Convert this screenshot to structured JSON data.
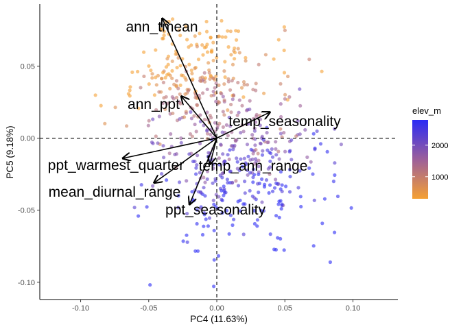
{
  "chart_data": {
    "type": "scatter",
    "title": "",
    "xlabel": "PC4 (11.63%)",
    "ylabel": "PC5 (9.18%)",
    "xlim": [
      -0.13,
      0.133
    ],
    "ylim": [
      -0.112,
      0.093
    ],
    "xticks": [
      {
        "value": -0.1,
        "label": "-0.10"
      },
      {
        "value": -0.05,
        "label": "-0.05"
      },
      {
        "value": 0.0,
        "label": "0.00"
      },
      {
        "value": 0.05,
        "label": "0.05"
      },
      {
        "value": 0.1,
        "label": "0.10"
      }
    ],
    "yticks": [
      {
        "value": 0.05,
        "label": "0.05"
      },
      {
        "value": 0.0,
        "label": "0.00"
      },
      {
        "value": -0.05,
        "label": "-0.05"
      },
      {
        "value": -0.1,
        "label": "-0.10"
      }
    ],
    "reference_lines": {
      "x": 0,
      "y": 0,
      "style": "dashed"
    },
    "grid": false,
    "points_note": "several hundred sample points colored by elev_m; coordinates estimated from the figure",
    "color_scale": {
      "title": "elev_m",
      "low_color": "#F5A033",
      "high_color": "#2B2BF5",
      "min": 300,
      "max": 2800,
      "ticks": [
        {
          "value": 1000,
          "label": "1000"
        },
        {
          "value": 2000,
          "label": "2000"
        }
      ]
    },
    "loadings": [
      {
        "label": "ann_tmean",
        "x": -0.04,
        "y": 0.083
      },
      {
        "label": "ann_ppt",
        "x": -0.026,
        "y": 0.029
      },
      {
        "label": "temp_seasonality",
        "x": 0.039,
        "y": 0.018
      },
      {
        "label": "ppt_warmest_quarter",
        "x": -0.069,
        "y": -0.014
      },
      {
        "label": "temp_ann_range",
        "x": -0.005,
        "y": -0.018
      },
      {
        "label": "mean_diurnal_range",
        "x": -0.046,
        "y": -0.031
      },
      {
        "label": "ppt_seasonality",
        "x": -0.02,
        "y": -0.046
      }
    ],
    "legend": {
      "position": "right",
      "type": "colorbar"
    }
  }
}
